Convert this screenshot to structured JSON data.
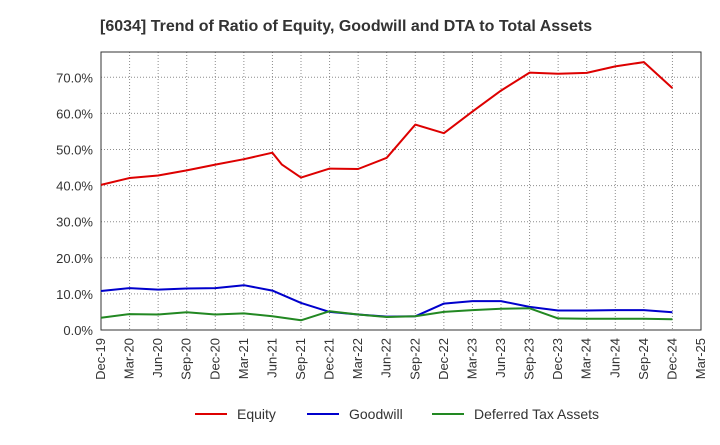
{
  "chart_data": {
    "type": "line",
    "title": "[6034]  Trend of Ratio of Equity, Goodwill and DTA to Total Assets",
    "xlabel": "",
    "ylabel": "",
    "ylim": [
      0,
      77
    ],
    "yticks": [
      0,
      10,
      20,
      30,
      40,
      50,
      60,
      70
    ],
    "ytick_labels": [
      "0.0%",
      "10.0%",
      "20.0%",
      "30.0%",
      "40.0%",
      "50.0%",
      "60.0%",
      "70.0%"
    ],
    "x_tick_labels": [
      "Dec-19",
      "Mar-20",
      "Jun-20",
      "Sep-20",
      "Dec-20",
      "Mar-21",
      "Jun-21",
      "Sep-21",
      "Dec-21",
      "Mar-22",
      "Jun-22",
      "Sep-22",
      "Dec-22",
      "Mar-23",
      "Jun-23",
      "Sep-23",
      "Dec-23",
      "Mar-24",
      "Jun-24",
      "Sep-24",
      "Dec-24",
      "Mar-25"
    ],
    "grid": true,
    "legend_position": "bottom",
    "series": [
      {
        "name": "Equity",
        "color": "#dd0000",
        "points": [
          [
            0,
            40.2
          ],
          [
            1,
            42.1
          ],
          [
            2,
            42.8
          ],
          [
            3,
            44.2
          ],
          [
            4,
            45.8
          ],
          [
            5,
            47.3
          ],
          [
            6,
            49.1
          ],
          [
            6.33,
            45.8
          ],
          [
            7,
            42.2
          ],
          [
            8,
            44.7
          ],
          [
            9,
            44.6
          ],
          [
            10,
            47.7
          ],
          [
            11,
            56.9
          ],
          [
            12,
            54.5
          ],
          [
            13,
            60.5
          ],
          [
            14,
            66.3
          ],
          [
            15,
            71.3
          ],
          [
            16,
            71.0
          ],
          [
            17,
            71.2
          ],
          [
            18,
            73.0
          ],
          [
            19,
            74.2
          ],
          [
            20,
            67.0
          ]
        ]
      },
      {
        "name": "Goodwill",
        "color": "#0000cc",
        "points": [
          [
            0,
            10.8
          ],
          [
            1,
            11.6
          ],
          [
            2,
            11.2
          ],
          [
            3,
            11.5
          ],
          [
            4,
            11.6
          ],
          [
            5,
            12.4
          ],
          [
            6,
            10.9
          ],
          [
            7,
            7.5
          ],
          [
            8,
            5.0
          ],
          [
            9,
            4.3
          ],
          [
            10,
            3.7
          ],
          [
            11,
            3.8
          ],
          [
            12,
            7.3
          ],
          [
            13,
            8.0
          ],
          [
            14,
            8.0
          ],
          [
            15,
            6.4
          ],
          [
            16,
            5.4
          ],
          [
            17,
            5.4
          ],
          [
            18,
            5.5
          ],
          [
            19,
            5.5
          ],
          [
            20,
            4.9
          ]
        ]
      },
      {
        "name": "Deferred Tax Assets",
        "color": "#228822",
        "points": [
          [
            0,
            3.4
          ],
          [
            1,
            4.4
          ],
          [
            2,
            4.3
          ],
          [
            3,
            4.9
          ],
          [
            4,
            4.3
          ],
          [
            5,
            4.6
          ],
          [
            6,
            3.8
          ],
          [
            7,
            2.7
          ],
          [
            8,
            5.2
          ],
          [
            9,
            4.3
          ],
          [
            10,
            3.6
          ],
          [
            11,
            3.8
          ],
          [
            12,
            5.0
          ],
          [
            13,
            5.5
          ],
          [
            14,
            5.9
          ],
          [
            15,
            6.0
          ],
          [
            16,
            3.2
          ],
          [
            17,
            3.1
          ],
          [
            18,
            3.1
          ],
          [
            19,
            3.1
          ],
          [
            20,
            3.0
          ]
        ]
      }
    ]
  }
}
